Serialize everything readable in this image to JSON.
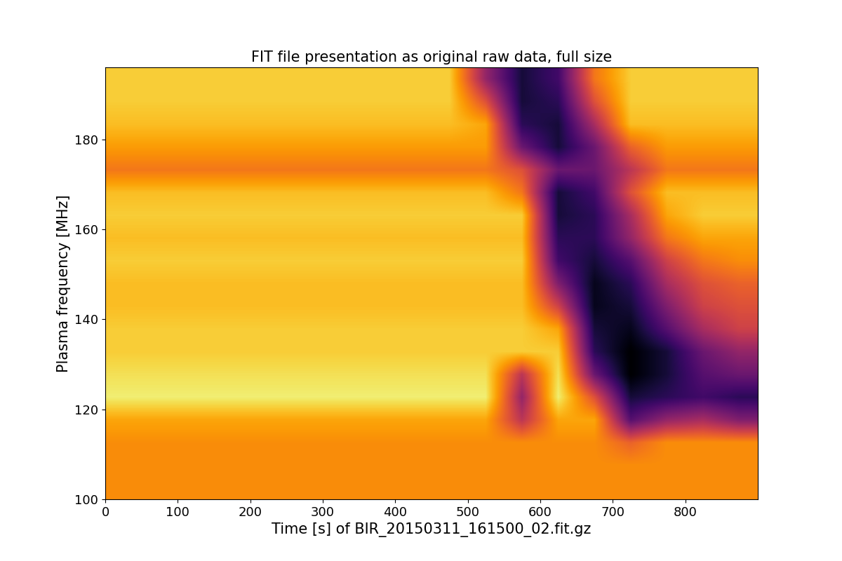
{
  "chart_data": {
    "type": "heatmap",
    "title": "FIT file presentation as original raw data, full size",
    "x_label": "Time [s] of BIR_20150311_161500_02.fit.gz",
    "y_label": "Plasma frequency [MHz]",
    "xlim": [
      0,
      900
    ],
    "ylim": [
      100,
      196
    ],
    "xticks": [
      0,
      100,
      200,
      300,
      400,
      500,
      600,
      700,
      800
    ],
    "yticks": [
      100,
      120,
      140,
      160,
      180
    ],
    "color": "inferno_r",
    "color_range": [
      0,
      100
    ],
    "grid": false,
    "cells": [
      [
        25,
        25,
        25,
        25,
        25,
        25,
        25,
        25,
        25,
        25,
        25,
        25,
        25,
        25,
        25,
        25,
        25,
        25
      ],
      [
        25,
        25,
        25,
        25,
        25,
        25,
        25,
        25,
        25,
        25,
        25,
        25,
        25,
        25,
        25,
        25,
        25,
        25
      ],
      [
        25,
        25,
        25,
        25,
        25,
        25,
        25,
        25,
        25,
        25,
        25,
        25,
        25,
        25,
        35,
        25,
        25,
        25
      ],
      [
        20,
        20,
        20,
        20,
        20,
        20,
        20,
        20,
        20,
        20,
        20,
        50,
        20,
        20,
        75,
        60,
        55,
        65
      ],
      [
        5,
        5,
        5,
        5,
        5,
        5,
        5,
        5,
        5,
        5,
        5,
        60,
        5,
        40,
        90,
        85,
        80,
        85
      ],
      [
        8,
        8,
        8,
        8,
        8,
        8,
        8,
        8,
        8,
        8,
        8,
        50,
        8,
        70,
        100,
        90,
        75,
        70
      ],
      [
        12,
        12,
        12,
        12,
        12,
        12,
        12,
        12,
        12,
        12,
        12,
        12,
        12,
        85,
        100,
        90,
        70,
        60
      ],
      [
        12,
        12,
        12,
        12,
        12,
        12,
        12,
        12,
        12,
        12,
        12,
        12,
        20,
        90,
        95,
        75,
        55,
        45
      ],
      [
        15,
        15,
        15,
        15,
        15,
        15,
        15,
        15,
        15,
        15,
        15,
        15,
        45,
        95,
        90,
        65,
        45,
        40
      ],
      [
        15,
        15,
        15,
        15,
        15,
        15,
        15,
        15,
        15,
        15,
        15,
        15,
        65,
        95,
        85,
        55,
        40,
        35
      ],
      [
        12,
        12,
        12,
        12,
        12,
        12,
        12,
        12,
        12,
        12,
        12,
        12,
        80,
        90,
        75,
        45,
        30,
        25
      ],
      [
        15,
        15,
        15,
        15,
        15,
        15,
        15,
        15,
        15,
        15,
        15,
        15,
        85,
        85,
        60,
        30,
        20,
        20
      ],
      [
        12,
        12,
        12,
        12,
        12,
        12,
        12,
        12,
        12,
        12,
        12,
        12,
        90,
        85,
        55,
        20,
        12,
        12
      ],
      [
        15,
        15,
        15,
        15,
        15,
        15,
        15,
        15,
        15,
        15,
        15,
        30,
        90,
        80,
        40,
        15,
        15,
        15
      ],
      [
        30,
        30,
        30,
        30,
        30,
        30,
        30,
        30,
        30,
        30,
        30,
        40,
        70,
        70,
        50,
        30,
        30,
        30
      ],
      [
        22,
        22,
        22,
        22,
        22,
        22,
        22,
        22,
        22,
        22,
        22,
        70,
        90,
        70,
        35,
        22,
        22,
        22
      ],
      [
        15,
        15,
        15,
        15,
        15,
        15,
        15,
        15,
        15,
        15,
        20,
        85,
        90,
        55,
        15,
        15,
        15,
        15
      ],
      [
        12,
        12,
        12,
        12,
        12,
        12,
        12,
        12,
        12,
        12,
        40,
        90,
        85,
        40,
        12,
        12,
        12,
        12
      ],
      [
        12,
        12,
        12,
        12,
        12,
        12,
        12,
        12,
        12,
        12,
        60,
        90,
        80,
        30,
        12,
        12,
        12,
        12
      ]
    ]
  }
}
